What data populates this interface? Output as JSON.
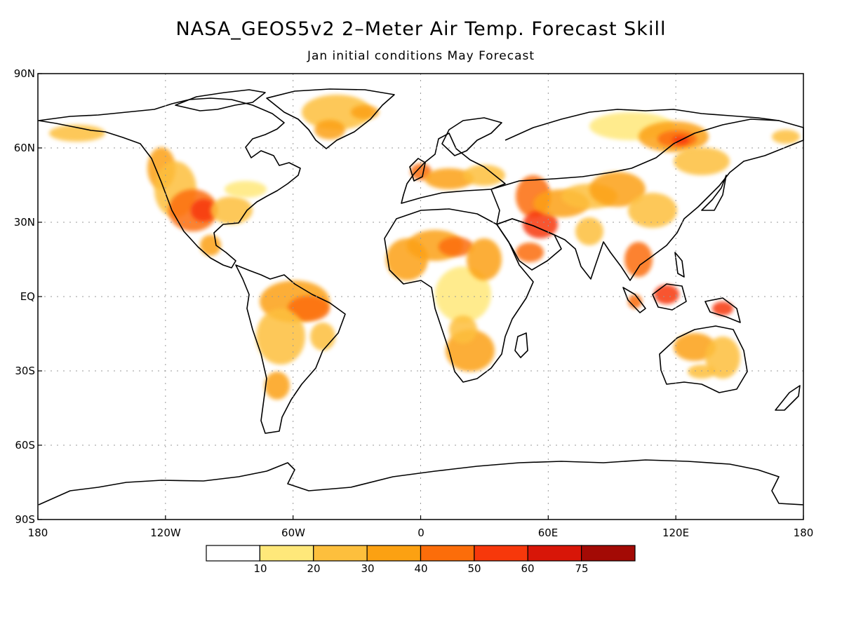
{
  "title": "NASA_GEOS5v2 2–Meter Air Temp. Forecast Skill",
  "subtitle": "Jan initial conditions  May Forecast",
  "lat_labels": [
    "90N",
    "60N",
    "30N",
    "EQ",
    "30S",
    "60S",
    "90S"
  ],
  "lon_labels": [
    "180",
    "120W",
    "60W",
    "0",
    "60E",
    "120E",
    "180"
  ],
  "colorbar": {
    "colors": [
      "#ffffff",
      "#ffe87a",
      "#fdbf3d",
      "#fca112",
      "#fc6d0a",
      "#f7380b",
      "#d81608",
      "#a30a05"
    ],
    "labels": [
      "10",
      "20",
      "30",
      "40",
      "50",
      "60",
      "75"
    ]
  },
  "colors": {
    "coast": "#000000",
    "grid": "#9a9a9a"
  }
}
